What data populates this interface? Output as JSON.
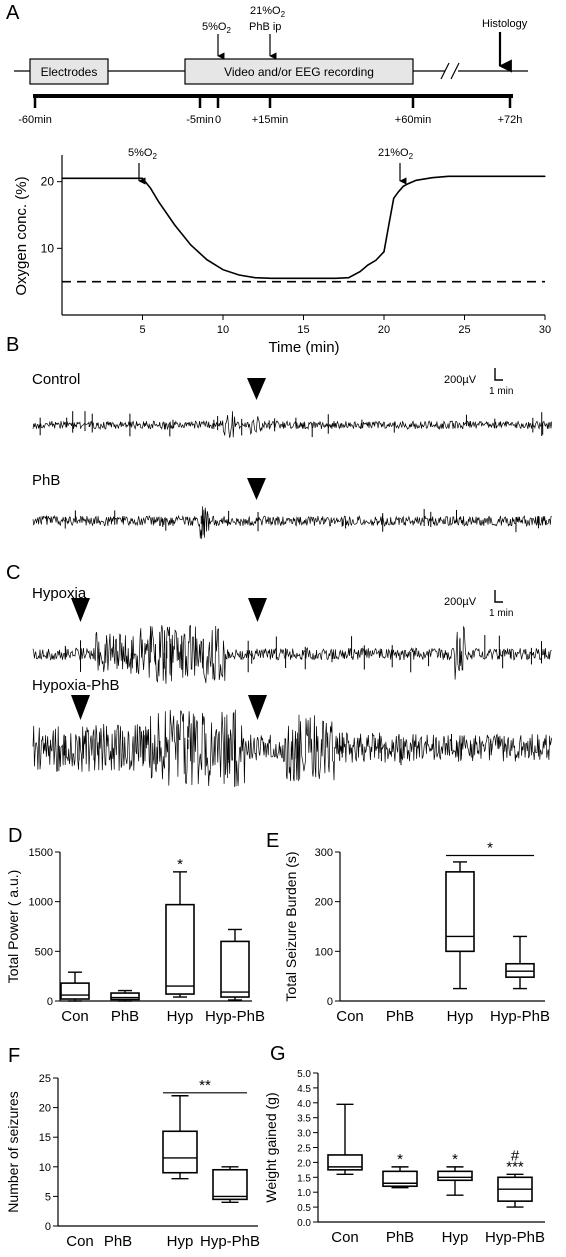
{
  "panels": {
    "A": "A",
    "B": "B",
    "C": "C",
    "D": "D",
    "E": "E",
    "F": "F",
    "G": "G"
  },
  "timeline": {
    "boxes": [
      "Electrodes",
      "Video and/or EEG recording"
    ],
    "events": {
      "o2_low": "5%O",
      "o2_low_sub": "2",
      "o2_high": "21%O",
      "o2_high_sub": "2",
      "phb": "PhB ip",
      "histology": "Histology"
    },
    "ticks": [
      "-60min",
      "-5min",
      "0",
      "+15min",
      "+60min",
      "+72h"
    ]
  },
  "oxygen": {
    "ylabel": "Oxygen conc. (%)",
    "xlabel": "Time (min)",
    "yticks": [
      "10",
      "20"
    ],
    "xticks": [
      "5",
      "10",
      "15",
      "20",
      "25",
      "30"
    ],
    "ann_low": "5%O",
    "ann_low_sub": "2",
    "ann_high": "21%O",
    "ann_high_sub": "2"
  },
  "eeg": {
    "control": "Control",
    "phb": "PhB",
    "hypoxia": "Hypoxia",
    "hypoxia_phb": "Hypoxia-PhB",
    "scale_v": "200µV",
    "scale_t": "1 min"
  },
  "colors": {
    "box_fill": "#e6e6e6",
    "trace": "#000000"
  },
  "chart_data": [
    {
      "id": "oxygen",
      "type": "line",
      "xlabel": "Time (min)",
      "ylabel": "Oxygen conc. (%)",
      "xlim": [
        0,
        30
      ],
      "ylim": [
        0,
        24
      ],
      "x": [
        0,
        2,
        4,
        5,
        5.5,
        6,
        7,
        8,
        9,
        10,
        11,
        12,
        13,
        14,
        15,
        16,
        17,
        17.8,
        18.5,
        19,
        19.5,
        20,
        20.3,
        20.6,
        20.9,
        21.2,
        21.5,
        22,
        23,
        24,
        25,
        26,
        27,
        28,
        29,
        30
      ],
      "values": [
        20.5,
        20.5,
        20.5,
        20.5,
        19,
        17,
        13.5,
        10.5,
        8.3,
        6.8,
        6,
        5.6,
        5.5,
        5.5,
        5.5,
        5.5,
        5.5,
        5.6,
        6.5,
        7.5,
        8.2,
        9.5,
        13.5,
        17.5,
        18.5,
        19.3,
        19.7,
        20.2,
        20.6,
        20.8,
        20.8,
        20.8,
        20.8,
        20.8,
        20.8,
        20.8
      ],
      "baseline": 5
    },
    {
      "id": "total_power",
      "type": "box",
      "title": "",
      "ylabel": "Total Power ( a.u.)",
      "ylim": [
        0,
        1500
      ],
      "yticks": [
        "0",
        "500",
        "1000",
        "1500"
      ],
      "categories": [
        "Con",
        "PhB",
        "Hyp",
        "Hyp-PhB"
      ],
      "boxes": [
        {
          "min": 0,
          "q1": 20,
          "median": 60,
          "q3": 180,
          "max": 290
        },
        {
          "min": 0,
          "q1": 15,
          "median": 35,
          "q3": 80,
          "max": 105
        },
        {
          "min": 40,
          "q1": 70,
          "median": 150,
          "q3": 970,
          "max": 1300
        },
        {
          "min": 10,
          "q1": 40,
          "median": 90,
          "q3": 600,
          "max": 720
        }
      ],
      "annotations": [
        {
          "cat": 2,
          "text": "*"
        }
      ]
    },
    {
      "id": "seizure_burden",
      "type": "box",
      "title": "",
      "ylabel": "Total Seizure Burden (s)",
      "ylim": [
        0,
        300
      ],
      "yticks": [
        "0",
        "100",
        "200",
        "300"
      ],
      "categories": [
        "Con",
        "PhB",
        "Hyp",
        "Hyp-PhB"
      ],
      "boxes": [
        null,
        null,
        {
          "min": 25,
          "q1": 100,
          "median": 130,
          "q3": 260,
          "max": 280
        },
        {
          "min": 25,
          "q1": 48,
          "median": 60,
          "q3": 75,
          "max": 130
        }
      ],
      "bracket": {
        "from": 2,
        "to": 3,
        "y": 293,
        "text": "*"
      }
    },
    {
      "id": "num_seizures",
      "type": "box",
      "title": "",
      "ylabel": "Number of seizures",
      "ylim": [
        0,
        25
      ],
      "yticks": [
        "0",
        "5",
        "10",
        "15",
        "20",
        "25"
      ],
      "categories": [
        "Con",
        "PhB",
        "Hyp",
        "Hyp-PhB"
      ],
      "boxes": [
        null,
        null,
        {
          "min": 8,
          "q1": 9,
          "median": 11.5,
          "q3": 16,
          "max": 22
        },
        {
          "min": 4,
          "q1": 4.5,
          "median": 5,
          "q3": 9.5,
          "max": 10
        }
      ],
      "bracket": {
        "from": 2,
        "to": 3,
        "y": 22.5,
        "text": "**"
      }
    },
    {
      "id": "weight_gained",
      "type": "box",
      "title": "",
      "ylabel": "Weight gained (g)",
      "ylim": [
        0,
        5
      ],
      "yticks": [
        "0.0",
        "0.5",
        "1.0",
        "1.5",
        "2.0",
        "2.5",
        "3.0",
        "3.5",
        "4.0",
        "4.5",
        "5.0"
      ],
      "categories": [
        "Con",
        "PhB",
        "Hyp",
        "Hyp-PhB"
      ],
      "boxes": [
        {
          "min": 1.6,
          "q1": 1.75,
          "median": 1.85,
          "q3": 2.25,
          "max": 3.95
        },
        {
          "min": 1.15,
          "q1": 1.2,
          "median": 1.3,
          "q3": 1.7,
          "max": 1.85
        },
        {
          "min": 0.9,
          "q1": 1.4,
          "median": 1.5,
          "q3": 1.7,
          "max": 1.85
        },
        {
          "min": 0.5,
          "q1": 0.7,
          "median": 1.1,
          "q3": 1.5,
          "max": 1.6
        }
      ],
      "annotations": [
        {
          "cat": 1,
          "text": "*"
        },
        {
          "cat": 2,
          "text": "*"
        },
        {
          "cat": 3,
          "text": "***"
        },
        {
          "cat": 3,
          "text": "#"
        }
      ]
    }
  ]
}
